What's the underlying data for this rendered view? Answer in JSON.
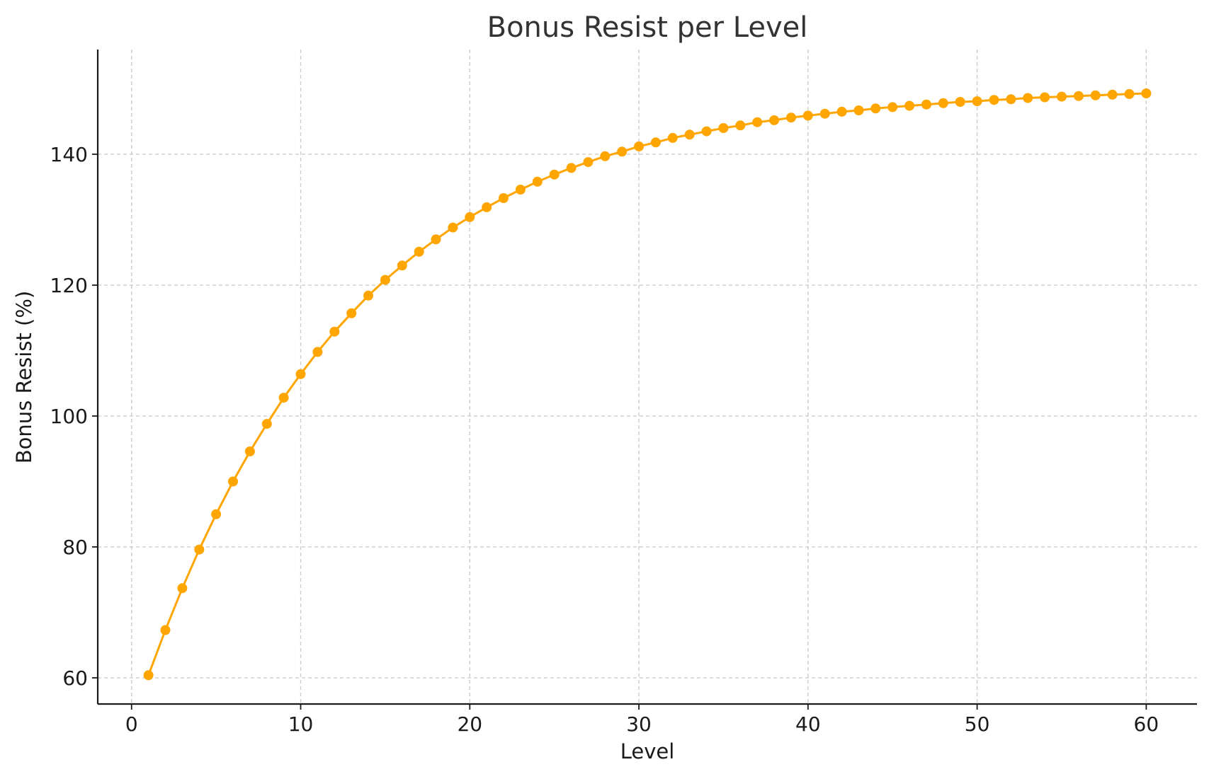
{
  "chart_data": {
    "type": "line",
    "title": "Bonus Resist per Level",
    "xlabel": "Level",
    "ylabel": "Bonus Resist (%)",
    "xlim": [
      -2,
      63
    ],
    "ylim": [
      56,
      156
    ],
    "xticks": [
      0,
      10,
      20,
      30,
      40,
      50,
      60
    ],
    "yticks": [
      60,
      80,
      100,
      120,
      140
    ],
    "xtick_labels": [
      "0",
      "10",
      "20",
      "30",
      "40",
      "50",
      "60"
    ],
    "ytick_labels": [
      "60",
      "80",
      "100",
      "120",
      "140"
    ],
    "grid": true,
    "legend": "none",
    "line_color": "#FFA500",
    "marker": "circle",
    "series": [
      {
        "x": [
          1,
          2,
          3,
          4,
          5,
          6,
          7,
          8,
          9,
          10,
          11,
          12,
          13,
          14,
          15,
          16,
          17,
          18,
          19,
          20,
          21,
          22,
          23,
          24,
          25,
          26,
          27,
          28,
          29,
          30,
          31,
          32,
          33,
          34,
          35,
          36,
          37,
          38,
          39,
          40,
          41,
          42,
          43,
          44,
          45,
          46,
          47,
          48,
          49,
          50,
          51,
          52,
          53,
          54,
          55,
          56,
          57,
          58,
          59,
          60
        ],
        "values": [
          60.4,
          67.3,
          73.7,
          79.6,
          85.0,
          90.0,
          94.6,
          98.8,
          102.8,
          106.4,
          109.8,
          112.9,
          115.7,
          118.4,
          120.8,
          123.0,
          125.1,
          127.0,
          128.8,
          130.4,
          131.9,
          133.3,
          134.6,
          135.8,
          136.9,
          137.9,
          138.8,
          139.7,
          140.4,
          141.2,
          141.8,
          142.5,
          143.0,
          143.5,
          144.0,
          144.4,
          144.9,
          145.2,
          145.6,
          145.9,
          146.2,
          146.5,
          146.7,
          147.0,
          147.2,
          147.4,
          147.6,
          147.8,
          148.0,
          148.1,
          148.3,
          148.4,
          148.6,
          148.7,
          148.8,
          148.9,
          149.0,
          149.1,
          149.2,
          149.3
        ]
      }
    ]
  }
}
